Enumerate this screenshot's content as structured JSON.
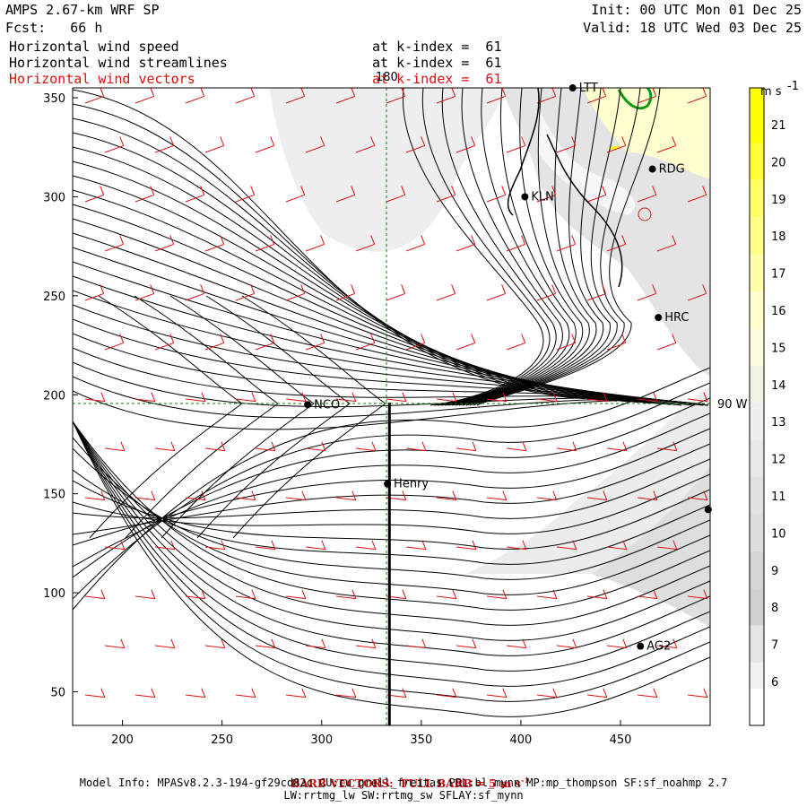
{
  "header": {
    "title": "AMPS 2.67-km WRF SP",
    "forecast": "Fcst:   66 h",
    "init": "Init: 00 UTC Mon 01 Dec 25",
    "valid": "Valid: 18 UTC Wed 03 Dec 25",
    "fields": [
      {
        "name": "Horizontal wind speed",
        "level": "at k-index =  61",
        "color": "#000000"
      },
      {
        "name": "Horizontal wind streamlines",
        "level": "at k-index =  61",
        "color": "#000000"
      },
      {
        "name": "Horizontal wind vectors",
        "level": "at k-index =  61",
        "color": "#e01010"
      }
    ]
  },
  "map": {
    "x_ticks": [
      "200",
      "250",
      "300",
      "350",
      "400",
      "450"
    ],
    "y_ticks": [
      "350",
      "300",
      "250",
      "200",
      "150",
      "100",
      "50"
    ],
    "x_range": [
      175,
      495
    ],
    "y_range": [
      33,
      355
    ],
    "meridian_label": "180",
    "parallel_label": "90 W",
    "stations": [
      {
        "label": "NCO",
        "x": 293,
        "y": 195
      },
      {
        "label": "Henry",
        "x": 333,
        "y": 155
      },
      {
        "label": "KLN",
        "x": 402,
        "y": 300
      },
      {
        "label": "RDG",
        "x": 466,
        "y": 314
      },
      {
        "label": "HRC",
        "x": 469,
        "y": 239
      },
      {
        "label": "AG2",
        "x": 460,
        "y": 73
      },
      {
        "label": "LTT",
        "x": 426,
        "y": 355
      },
      {
        "label": "",
        "x": 494,
        "y": 142
      }
    ],
    "transect": {
      "x": 334,
      "y_from": 196,
      "y_to": 33
    }
  },
  "colorbar": {
    "unit": "m s",
    "unit_exp": "-1",
    "levels": [
      "21",
      "20",
      "19",
      "18",
      "17",
      "16",
      "15",
      "14",
      "13",
      "12",
      "11",
      "10",
      "9",
      "8",
      "7",
      "6"
    ],
    "colors": [
      "#ffff00",
      "#ffff33",
      "#ffff66",
      "#ffff88",
      "#ffffaa",
      "#ffffcc",
      "#ffffdd",
      "#f4f4e6",
      "#eeeeee",
      "#e8e8e8",
      "#e2e2e2",
      "#dcdcdc",
      "#d6d6d6",
      "#d0d0d0",
      "#e6e6e6",
      "#f2f2f2"
    ],
    "bottom_color": "#ffffff"
  },
  "footer": {
    "barb_note": "BARB VECTORS:  FULL BARB = 5 m s",
    "barb_exp": "-1",
    "model_info": "Model Info: MPASv8.2.3-194-gf29cd82c CU:cu_grell_freitas PBL:bl_mynn MP:mp_thompson SF:sf_noahmp 2.7",
    "model_info_2": "LW:rrtmg_lw SW:rrtmg_sw SFLAY:sf_mynn"
  }
}
